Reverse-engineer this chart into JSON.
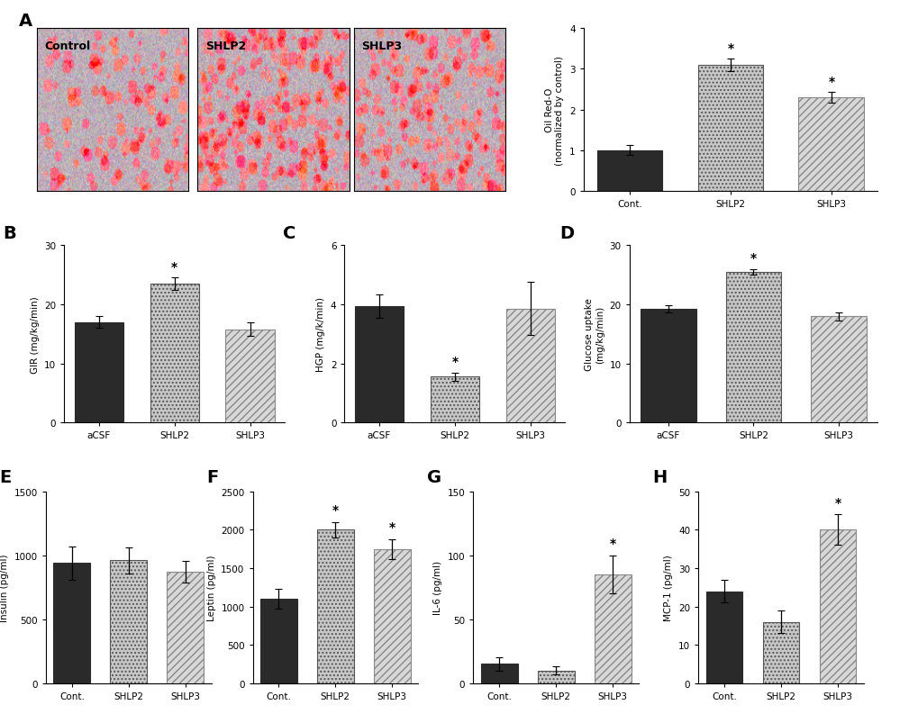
{
  "panel_A_bar": {
    "categories": [
      "Cont.",
      "SHLP2",
      "SHLP3"
    ],
    "values": [
      1.0,
      3.1,
      2.3
    ],
    "errors": [
      0.12,
      0.15,
      0.13
    ],
    "ylabel": "Oil Red-O\n(normalized by control)",
    "ylim": [
      0,
      4
    ],
    "yticks": [
      0,
      1,
      2,
      3,
      4
    ],
    "sig": [
      false,
      true,
      true
    ]
  },
  "panel_B": {
    "categories": [
      "aCSF",
      "SHLP2",
      "SHLP3"
    ],
    "values": [
      17.0,
      23.5,
      15.8
    ],
    "errors": [
      1.0,
      1.0,
      1.2
    ],
    "ylabel": "GIR (mg/kg/min)",
    "ylim": [
      0,
      30
    ],
    "yticks": [
      0,
      10,
      20,
      30
    ],
    "sig": [
      false,
      true,
      false
    ]
  },
  "panel_C": {
    "categories": [
      "aCSF",
      "SHLP2",
      "SHLP3"
    ],
    "values": [
      3.95,
      1.55,
      3.85
    ],
    "errors": [
      0.4,
      0.15,
      0.9
    ],
    "ylabel": "HGP (mg/k/min)",
    "ylim": [
      0,
      6
    ],
    "yticks": [
      0,
      2,
      4,
      6
    ],
    "sig": [
      false,
      true,
      false
    ]
  },
  "panel_D": {
    "categories": [
      "aCSF",
      "SHLP2",
      "SHLP3"
    ],
    "values": [
      19.2,
      25.5,
      18.0
    ],
    "errors": [
      0.6,
      0.5,
      0.7
    ],
    "ylabel": "Glucose uptake\n(mg/kg/min)",
    "ylim": [
      0,
      30
    ],
    "yticks": [
      0,
      10,
      20,
      30
    ],
    "sig": [
      false,
      true,
      false
    ]
  },
  "panel_E": {
    "categories": [
      "Cont.",
      "SHLP2",
      "SHLP3"
    ],
    "values": [
      940,
      960,
      870
    ],
    "errors": [
      130,
      100,
      85
    ],
    "ylabel": "Insulin (pg/ml)",
    "ylim": [
      0,
      1500
    ],
    "yticks": [
      0,
      500,
      1000,
      1500
    ],
    "sig": [
      false,
      false,
      false
    ]
  },
  "panel_F": {
    "categories": [
      "Cont.",
      "SHLP2",
      "SHLP3"
    ],
    "values": [
      1100,
      2000,
      1750
    ],
    "errors": [
      130,
      100,
      130
    ],
    "ylabel": "Leptin (pg/ml)",
    "ylim": [
      0,
      2500
    ],
    "yticks": [
      0,
      500,
      1000,
      1500,
      2000,
      2500
    ],
    "sig": [
      false,
      true,
      true
    ]
  },
  "panel_G": {
    "categories": [
      "Cont.",
      "SHLP2",
      "SHLP3"
    ],
    "values": [
      15,
      10,
      85
    ],
    "errors": [
      5,
      3,
      15
    ],
    "ylabel": "IL-6 (pg/ml)",
    "ylim": [
      0,
      150
    ],
    "yticks": [
      0,
      50,
      100,
      150
    ],
    "sig": [
      false,
      false,
      true
    ]
  },
  "panel_H": {
    "categories": [
      "Cont.",
      "SHLP2",
      "SHLP3"
    ],
    "values": [
      24,
      16,
      40
    ],
    "errors": [
      3,
      3,
      4
    ],
    "ylabel": "MCP-1 (pg/ml)",
    "ylim": [
      0,
      50
    ],
    "yticks": [
      0,
      10,
      20,
      30,
      40,
      50
    ],
    "sig": [
      false,
      false,
      true
    ]
  },
  "img_titles": [
    "Control",
    "SHLP2",
    "SHLP3"
  ],
  "img_seeds": [
    10,
    20,
    30
  ]
}
